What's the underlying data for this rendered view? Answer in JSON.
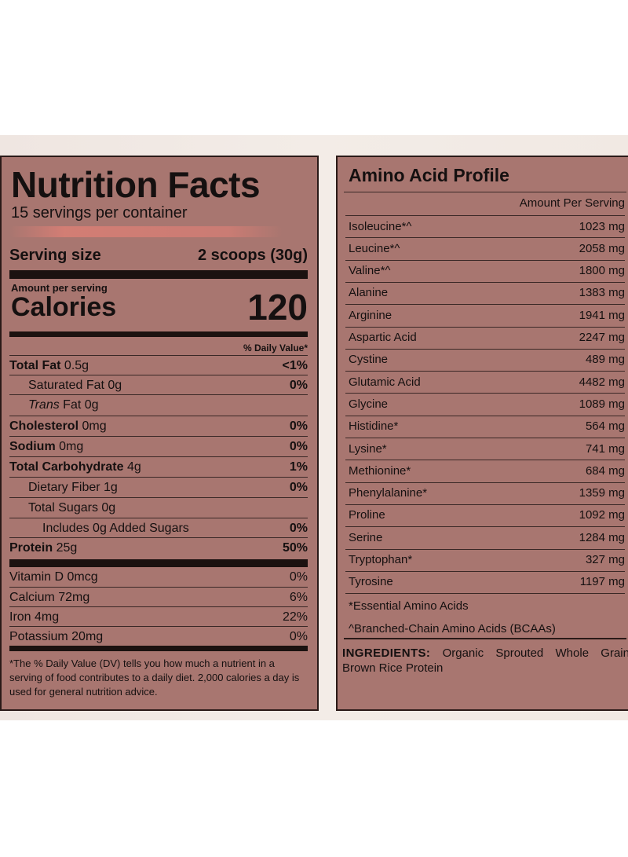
{
  "nutrition": {
    "title": "Nutrition Facts",
    "servings": "15 servings per container",
    "serving_size_label": "Serving size",
    "serving_size_value": "2 scoops (30g)",
    "amount_per_serving": "Amount per serving",
    "calories_label": "Calories",
    "calories_value": "120",
    "dv_header": "% Daily Value*",
    "rows": [
      {
        "bold": "Total Fat",
        "text": " 0.5g",
        "pct": "<1%"
      },
      {
        "bold": "",
        "text": "Saturated Fat 0g",
        "pct": "0%"
      },
      {
        "bold": "",
        "italic": "Trans",
        "text": " Fat 0g",
        "pct": ""
      },
      {
        "bold": "Cholesterol",
        "text": " 0mg",
        "pct": "0%"
      },
      {
        "bold": "Sodium",
        "text": " 0mg",
        "pct": "0%"
      },
      {
        "bold": "Total Carbohydrate",
        "text": " 4g",
        "pct": "1%"
      },
      {
        "bold": "",
        "text": "Dietary Fiber 1g",
        "pct": "0%"
      },
      {
        "bold": "",
        "text": "Total Sugars 0g",
        "pct": ""
      },
      {
        "bold": "",
        "text": "Includes 0g Added Sugars",
        "pct": "0%"
      },
      {
        "bold": "Protein",
        "text": " 25g",
        "pct": "50%"
      }
    ],
    "vitamins": [
      {
        "text": "Vitamin D 0mcg",
        "pct": "0%"
      },
      {
        "text": "Calcium 72mg",
        "pct": "6%"
      },
      {
        "text": "Iron 4mg",
        "pct": "22%"
      },
      {
        "text": "Potassium 20mg",
        "pct": "0%"
      }
    ],
    "footnote": "*The % Daily Value (DV) tells you how much a nutrient in a serving of food contributes to a daily diet. 2,000 calories a day is used for general nutrition advice."
  },
  "amino": {
    "title": "Amino Acid Profile",
    "amount_header": "Amount Per Serving",
    "rows": [
      {
        "name": "Isoleucine*^",
        "value": "1023 mg"
      },
      {
        "name": "Leucine*^",
        "value": "2058 mg"
      },
      {
        "name": "Valine*^",
        "value": "1800 mg"
      },
      {
        "name": "Alanine",
        "value": "1383 mg"
      },
      {
        "name": "Arginine",
        "value": "1941 mg"
      },
      {
        "name": "Aspartic Acid",
        "value": "2247 mg"
      },
      {
        "name": "Cystine",
        "value": "489 mg"
      },
      {
        "name": "Glutamic Acid",
        "value": "4482 mg"
      },
      {
        "name": "Glycine",
        "value": "1089 mg"
      },
      {
        "name": "Histidine*",
        "value": "564 mg"
      },
      {
        "name": "Lysine*",
        "value": "741 mg"
      },
      {
        "name": "Methionine*",
        "value": "684 mg"
      },
      {
        "name": "Phenylalanine*",
        "value": "1359 mg"
      },
      {
        "name": "Proline",
        "value": "1092 mg"
      },
      {
        "name": "Serine",
        "value": "1284 mg"
      },
      {
        "name": "Tryptophan*",
        "value": "327 mg"
      },
      {
        "name": "Tyrosine",
        "value": "1197 mg"
      }
    ],
    "note_essential": "*Essential Amino Acids",
    "note_bcaa": "^Branched-Chain Amino Acids (BCAAs)",
    "ingredients_label": "INGREDIENTS:",
    "ingredients_text": " Organic Sprouted Whole Grain Brown Rice Protein"
  }
}
